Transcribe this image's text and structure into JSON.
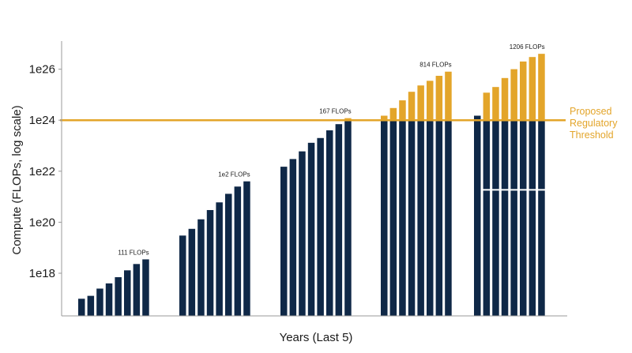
{
  "chart_data": {
    "type": "bar",
    "xlabel": "Years (Last 5)",
    "ylabel": "Compute (FLOPs, log scale)",
    "yscale": "log",
    "ylim": [
      1e+17,
      1e+27
    ],
    "yticks": [
      {
        "value": 1e+18,
        "label": "1e18"
      },
      {
        "value": 1e+20,
        "label": "1e20"
      },
      {
        "value": 1e+22,
        "label": "1e22"
      },
      {
        "value": 1e+24,
        "label": "1e24"
      },
      {
        "value": 1e+26,
        "label": "1e26"
      }
    ],
    "threshold": {
      "value": 1e+24,
      "label_lines": [
        "Proposed",
        "Regulatory",
        "Threshold"
      ]
    },
    "colors": {
      "below_threshold": "#0f2847",
      "above_threshold": "#e3a52a",
      "threshold_line": "#e3a52a",
      "axis": "#999999"
    },
    "groups": [
      {
        "bar_label": "111 FLOPs",
        "values": [
          1e+17,
          1.3e+17,
          2.5e+17,
          4e+17,
          7e+17,
          1.3e+18,
          2.3e+18,
          3.5e+18
        ]
      },
      {
        "bar_label": "1e2 FLOPs",
        "values": [
          3e+19,
          5.5e+19,
          1.3e+20,
          3e+20,
          6e+20,
          1.3e+21,
          2.5e+21,
          4e+21
        ]
      },
      {
        "bar_label": "167 FLOPs",
        "values": [
          1.5e+22,
          3e+22,
          6e+22,
          1.3e+23,
          2e+23,
          4e+23,
          7e+23,
          1.2e+24
        ]
      },
      {
        "bar_label": "814 FLOPs",
        "values": [
          1.5e+24,
          3e+24,
          6e+24,
          1.3e+25,
          2.3e+25,
          3.5e+25,
          5.5e+25,
          8e+25
        ],
        "floor_value": 1e+17
      },
      {
        "bar_label": "1206 FLOPs",
        "values": [
          5e+24,
          1.2e+25,
          2e+25,
          4.5e+25,
          1e+26,
          2e+26,
          3e+26,
          4e+26
        ],
        "floor_value": 1e+17,
        "lower_block_floor": 2e+21,
        "first_bar_value": 1.5e+24
      }
    ]
  }
}
